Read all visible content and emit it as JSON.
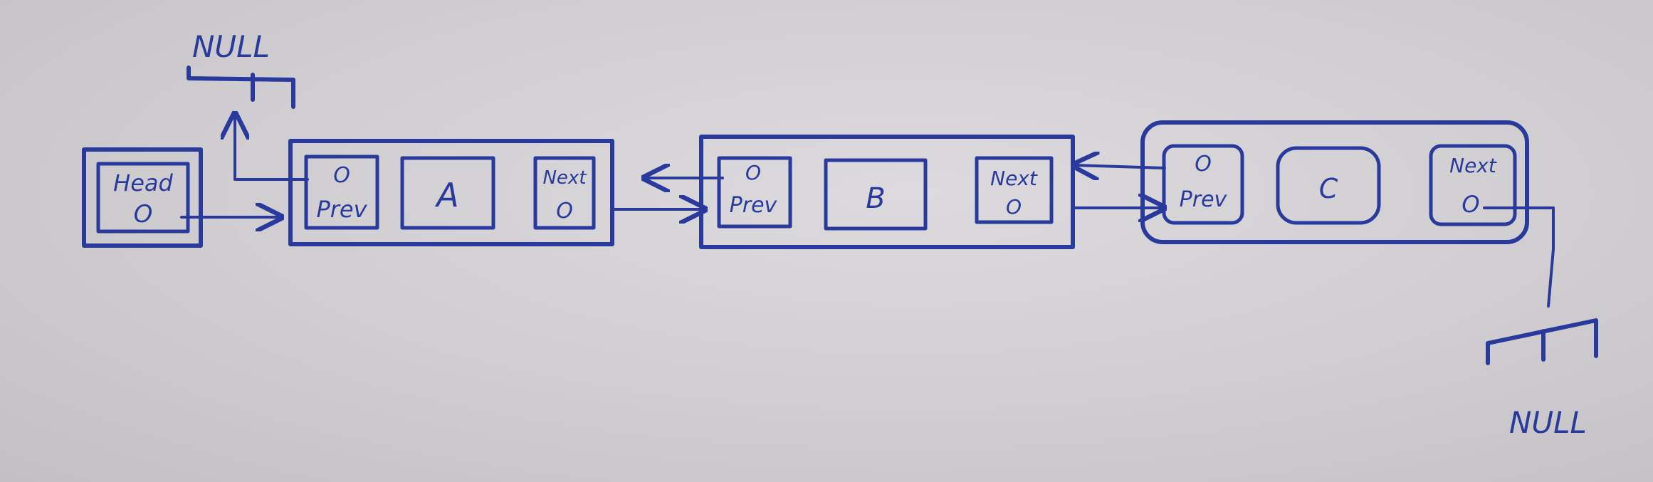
{
  "diagram": {
    "head": {
      "label": "Head",
      "pointer": "O"
    },
    "null_top": "NULL",
    "null_bottom": "NULL",
    "nodes": [
      {
        "prev_pointer": "O",
        "prev_label": "Prev",
        "value": "A",
        "next_label": "Next",
        "next_pointer": "O"
      },
      {
        "prev_pointer": "O",
        "prev_label": "Prev",
        "value": "B",
        "next_label": "Next",
        "next_pointer": "O"
      },
      {
        "prev_pointer": "O",
        "prev_label": "Prev",
        "value": "C",
        "next_label": "Next",
        "next_pointer": "O"
      }
    ]
  },
  "colors": {
    "ink": "#2a3a9c",
    "paper": "#cfcdd0"
  }
}
